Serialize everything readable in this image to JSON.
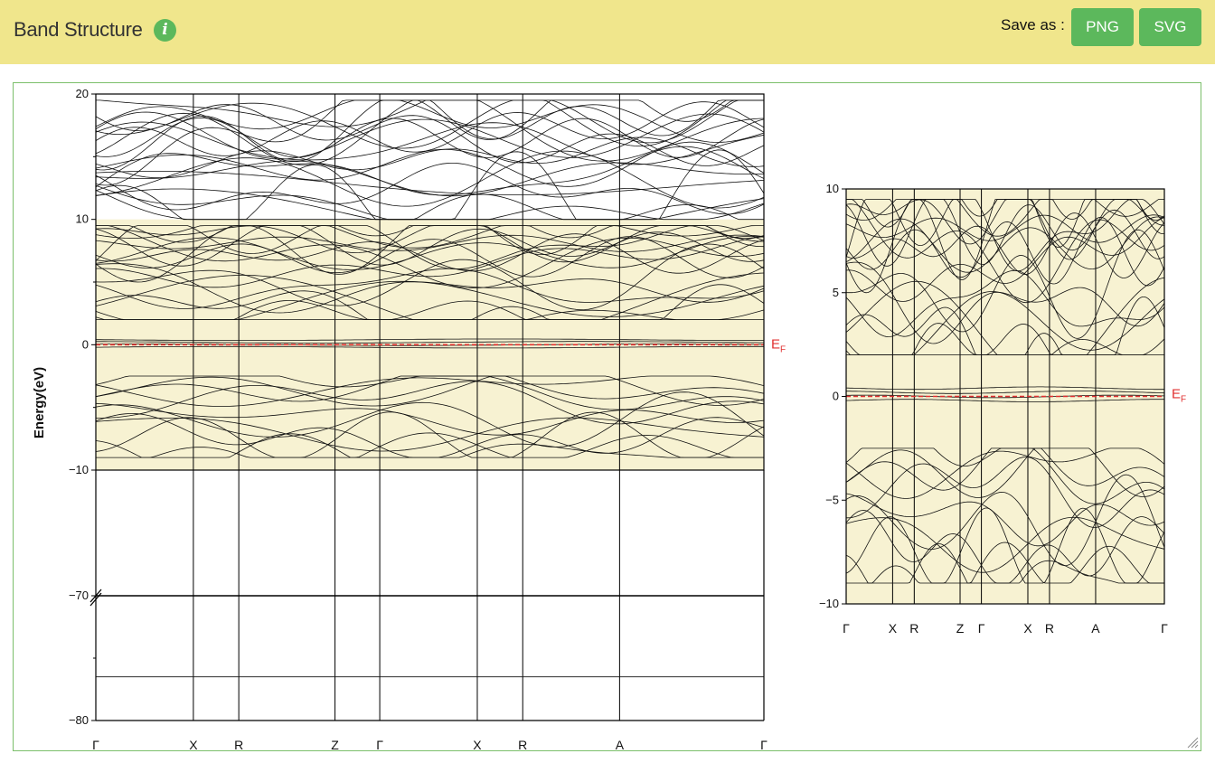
{
  "header": {
    "title": "Band Structure",
    "info_icon": "info-icon",
    "save_label": "Save as :",
    "png_label": "PNG",
    "svg_label": "SVG"
  },
  "colors": {
    "header_bg": "#f0e68c",
    "highlight_band": "#f7f2d2",
    "button": "#5cb85c",
    "fermi": "#e03030",
    "panel_border": "#7cbf6b"
  },
  "chart_data": [
    {
      "type": "line",
      "subtype": "band-structure",
      "ylabel": "Energy(eV)",
      "axis_break": true,
      "ylim_upper": [
        -10,
        20
      ],
      "ylim_lower": [
        -80,
        -70
      ],
      "yticks_upper": [
        -10,
        0,
        10,
        20
      ],
      "yticks_lower": [
        -80,
        -70
      ],
      "highlight_range": [
        -10,
        10
      ],
      "fermi_level": 0,
      "fermi_label_main": "E",
      "fermi_label_sub": "F",
      "kpath_labels": [
        "Γ",
        "X",
        "R",
        "Z",
        "Γ",
        "X",
        "R",
        "A",
        "Γ"
      ],
      "kpath_positions": [
        0,
        0.146,
        0.214,
        0.358,
        0.425,
        0.571,
        0.639,
        0.784,
        1.0
      ],
      "core_band_energy": -76.5,
      "band_groups": [
        {
          "name": "conduction-high",
          "range": [
            10,
            19.5
          ]
        },
        {
          "name": "conduction-low",
          "range": [
            2,
            9.5
          ]
        },
        {
          "name": "fermi-region",
          "range": [
            -0.2,
            0.4
          ]
        },
        {
          "name": "valence",
          "range": [
            -9,
            -2.5
          ]
        }
      ]
    },
    {
      "type": "line",
      "subtype": "band-structure-zoom",
      "ylim": [
        -10,
        10
      ],
      "yticks": [
        -10,
        -5,
        0,
        5,
        10
      ],
      "fermi_level": 0,
      "fermi_label_main": "E",
      "fermi_label_sub": "F",
      "kpath_labels": [
        "Γ",
        "X",
        "R",
        "Z",
        "Γ",
        "X",
        "R",
        "A",
        "Γ"
      ],
      "kpath_positions": [
        0,
        0.146,
        0.214,
        0.358,
        0.425,
        0.571,
        0.639,
        0.784,
        1.0
      ]
    }
  ]
}
